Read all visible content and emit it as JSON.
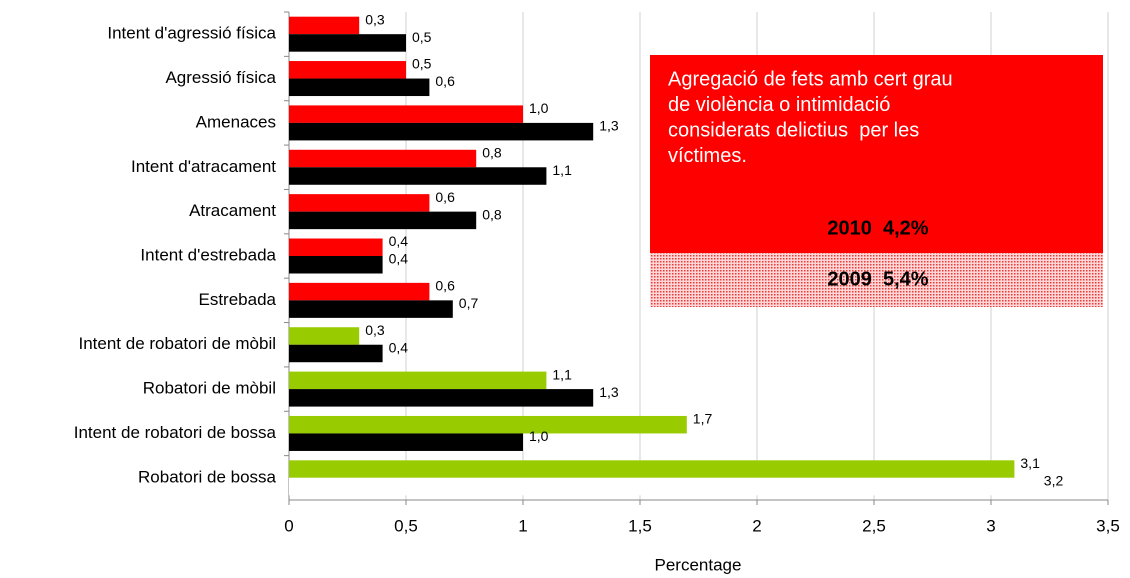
{
  "chart_data": {
    "type": "hbar",
    "x_label": "Percentage",
    "categories": [
      "Intent d'agressió física",
      "Agressió física",
      "Amenaces",
      "Intent d'atracament",
      "Atracament",
      "Intent d'estrebada",
      "Estrebada",
      "Intent de robatori de mòbil",
      "Robatori de mòbil",
      "Intent de robatori de bossa",
      "Robatori de bossa"
    ],
    "series": [
      {
        "values": [
          0.3,
          0.5,
          1.0,
          0.8,
          0.6,
          0.4,
          0.6,
          0.3,
          1.1,
          1.7,
          3.1
        ],
        "value_labels": [
          "0,3",
          "0,5",
          "1,0",
          "0,8",
          "0,6",
          "0,4",
          "0,6",
          "0,3",
          "1,1",
          "1,7",
          "3,1"
        ],
        "colors": [
          "#ff0000",
          "#ff0000",
          "#ff0000",
          "#ff0000",
          "#ff0000",
          "#ff0000",
          "#ff0000",
          "#99cc00",
          "#99cc00",
          "#99cc00",
          "#99cc00"
        ]
      },
      {
        "values": [
          0.5,
          0.6,
          1.3,
          1.1,
          0.8,
          0.4,
          0.7,
          0.4,
          1.3,
          1.0,
          3.2
        ],
        "value_labels": [
          "0,5",
          "0,6",
          "1,3",
          "1,1",
          "0,8",
          "0,4",
          "0,7",
          "0,4",
          "1,3",
          "1,0",
          "3,2"
        ],
        "colors": [
          "#000000",
          "#000000",
          "#000000",
          "#000000",
          "#000000",
          "#000000",
          "#000000",
          "#000000",
          "#000000",
          "#000000",
          "#ffffff"
        ]
      }
    ],
    "xlim": [
      0,
      3.5
    ],
    "xticks": [
      0,
      {
        "value": 0.5,
        "label": "0,5"
      },
      1,
      {
        "value": 1.5,
        "label": "1,5"
      },
      2,
      {
        "value": 2.5,
        "label": "2,5"
      },
      3,
      {
        "value": 3.5,
        "label": "3,5"
      }
    ],
    "grid": true,
    "annotation": {
      "lines": [
        "Agregació de fets amb cert grau",
        "de violència o intimidació",
        "considerats delictius  per les",
        "víctimes."
      ],
      "stats": [
        "2010  4,2%",
        "2009  5,4%"
      ]
    }
  }
}
